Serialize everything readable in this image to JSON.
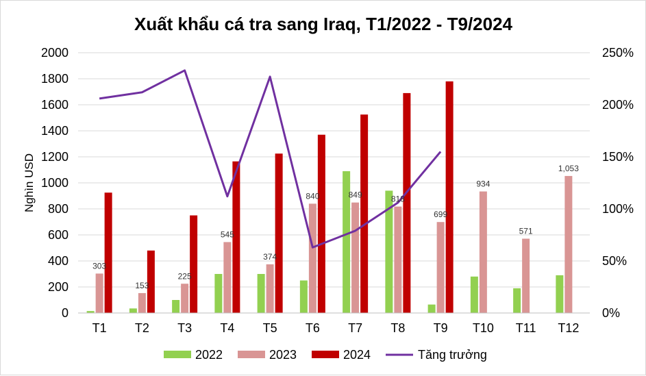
{
  "chart_data": {
    "type": "bar",
    "title": "Xuất khẩu cá tra sang Iraq, T1/2022 - T9/2024",
    "ylabel": "Nghìn USD",
    "ylim": [
      0,
      2000
    ],
    "yticks": [
      "0",
      "200",
      "400",
      "600",
      "800",
      "1000",
      "1200",
      "1400",
      "1600",
      "1800",
      "2000"
    ],
    "y2lim": [
      0,
      2.5
    ],
    "y2ticks": [
      "0%",
      "50%",
      "100%",
      "150%",
      "200%",
      "250%"
    ],
    "categories": [
      "T1",
      "T2",
      "T3",
      "T4",
      "T5",
      "T6",
      "T7",
      "T8",
      "T9",
      "T10",
      "T11",
      "T12"
    ],
    "series": [
      {
        "name": "2022",
        "type": "bar",
        "color": "#92d050",
        "values": [
          15,
          35,
          100,
          300,
          300,
          250,
          1090,
          940,
          65,
          280,
          190,
          290
        ]
      },
      {
        "name": "2023",
        "type": "bar",
        "color": "#d99594",
        "values": [
          303,
          153,
          225,
          545,
          374,
          840,
          849,
          818,
          699,
          934,
          571,
          1053
        ],
        "labels": [
          "303",
          "153",
          "225",
          "545",
          "374",
          "840",
          "849",
          "818",
          "699",
          "934",
          "571",
          "1,053"
        ]
      },
      {
        "name": "2024",
        "type": "bar",
        "color": "#c00000",
        "values": [
          925,
          480,
          750,
          1165,
          1225,
          1370,
          1525,
          1690,
          1780,
          null,
          null,
          null
        ]
      },
      {
        "name": "Tăng trưởng",
        "type": "line",
        "axis": "right",
        "color": "#7030a0",
        "values": [
          2.06,
          2.12,
          2.33,
          1.12,
          2.27,
          0.63,
          0.79,
          1.06,
          1.55,
          null,
          null,
          null
        ]
      }
    ],
    "grid": true,
    "legend": "bottom"
  }
}
